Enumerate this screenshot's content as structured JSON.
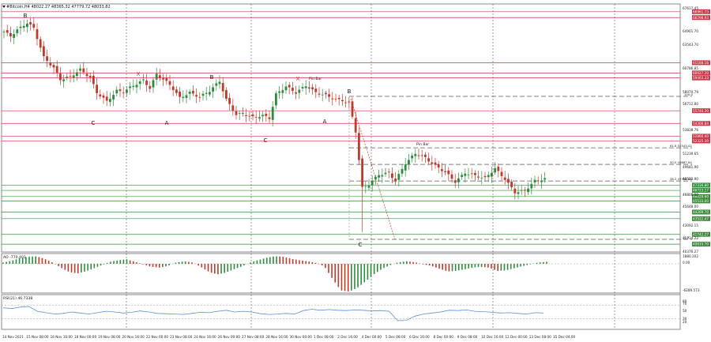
{
  "header": {
    "symbol_title": "#Bitcoin,H4  48022.27 48365.32 47779.72 48033.82"
  },
  "price_axis": {
    "ticks": [
      "67617.45",
      "64901.70",
      "63543.70",
      "60786.85",
      "58070.79",
      "56712.80",
      "53838.76",
      "51239.65",
      "49681.90",
      "48523.90",
      "46806.00",
      "45648.00",
      "43092.15",
      "41734.22",
      "40376.27"
    ]
  },
  "level_labels": [
    {
      "text": "66961.73",
      "color": "#c83747"
    },
    {
      "text": "66298.93",
      "color": "#c83747"
    },
    {
      "text": "61188.16",
      "color": "#c83747"
    },
    {
      "text": "60027.20",
      "color": "#c83747"
    },
    {
      "text": "59463.33",
      "color": "#c83747"
    },
    {
      "text": "55746.20",
      "color": "#c83747"
    },
    {
      "text": "54306.84",
      "color": "#c83747"
    },
    {
      "text": "52860.40",
      "color": "#c83747"
    },
    {
      "text": "52325.30",
      "color": "#c83747"
    },
    {
      "text": "47316.80",
      "color": "#3a8a3a"
    },
    {
      "text": "46723.17",
      "color": "#3a8a3a"
    },
    {
      "text": "46029.60",
      "color": "#3a8a3a"
    },
    {
      "text": "45533.00",
      "color": "#3a8a3a"
    },
    {
      "text": "44269.70",
      "color": "#3a8a3a"
    },
    {
      "text": "43522.47",
      "color": "#3a8a3a"
    },
    {
      "text": "41742.27",
      "color": "#3a8a3a"
    },
    {
      "text": "40633.70",
      "color": "#3a8a3a"
    }
  ],
  "fib": {
    "levels": [
      {
        "label": "100.0",
        "value": ""
      },
      {
        "label": "61.8",
        "value": "51545.02"
      },
      {
        "label": "50.0",
        "value": "49667.84"
      },
      {
        "label": "38.2",
        "value": "47790.66"
      },
      {
        "label": "0.0",
        "value": ""
      }
    ]
  },
  "wave_labels": [
    "B",
    "C",
    "X",
    "A",
    "B",
    "C",
    "X",
    "A",
    "B",
    "C",
    "C"
  ],
  "pin_bar_labels": [
    "Pin Bar",
    "Pin Bar"
  ],
  "ao": {
    "title": "AO -770.401",
    "ticks": [
      "1880.202",
      "0.00",
      "-6289.573"
    ]
  },
  "rsi": {
    "title": "RSI(21) 46.7338",
    "ticks": [
      "80",
      "70",
      "50",
      "30",
      "20"
    ]
  },
  "time_axis": {
    "labels": [
      "14 Nov 2021",
      "15 Nov 08:00",
      "16 Nov 16:00",
      "18 Nov 00:00",
      "19 Nov 08:00",
      "20 Nov 16:00",
      "22 Nov 00:00",
      "23 Nov 08:00",
      "24 Nov 16:00",
      "26 Nov 00:00",
      "27 Nov 08:00",
      "28 Nov 16:00",
      "30 Nov 00:00",
      "1 Dec 08:00",
      "2 Dec 16:00",
      "4 Dec 00:00",
      "5 Dec 08:00",
      "6 Dec 16:00",
      "8 Dec 00:00",
      "9 Dec 08:00",
      "10 Dec 16:00",
      "12 Dec 00:00",
      "13 Dec 08:00",
      "15 Dec 04:00"
    ]
  },
  "colors": {
    "bull": "#2e8b3e",
    "bear": "#c0392b",
    "resistance": "#c83747",
    "support": "#3a8a3a",
    "grid": "#555555",
    "frame": "#888888"
  },
  "chart_data": {
    "type": "candlestick",
    "title": "#Bitcoin,H4",
    "quote": {
      "open": 48022.27,
      "high": 48365.32,
      "low": 47779.72,
      "close": 48033.82
    },
    "x_range": [
      "14 Nov 2021",
      "15 Dec 04:00"
    ],
    "ylim": [
      40376.27,
      67617.45
    ],
    "path_points": [
      [
        0,
        64700
      ],
      [
        2,
        64200
      ],
      [
        4,
        64900
      ],
      [
        7,
        65700
      ],
      [
        9,
        65100
      ],
      [
        12,
        61800
      ],
      [
        15,
        60600
      ],
      [
        17,
        59300
      ],
      [
        20,
        59600
      ],
      [
        23,
        60400
      ],
      [
        26,
        59500
      ],
      [
        28,
        57800
      ],
      [
        31,
        56800
      ],
      [
        34,
        58000
      ],
      [
        36,
        57900
      ],
      [
        39,
        58600
      ],
      [
        42,
        59200
      ],
      [
        44,
        58300
      ],
      [
        46,
        59900
      ],
      [
        50,
        58700
      ],
      [
        53,
        57200
      ],
      [
        56,
        57800
      ],
      [
        59,
        57300
      ],
      [
        62,
        58000
      ],
      [
        65,
        59100
      ],
      [
        67,
        57000
      ],
      [
        70,
        55300
      ],
      [
        72,
        55400
      ],
      [
        75,
        55000
      ],
      [
        78,
        55200
      ],
      [
        80,
        54900
      ],
      [
        82,
        57600
      ],
      [
        85,
        58500
      ],
      [
        88,
        57800
      ],
      [
        91,
        58600
      ],
      [
        94,
        57800
      ],
      [
        97,
        57500
      ],
      [
        100,
        57000
      ],
      [
        102,
        56900
      ],
      [
        104,
        56600
      ],
      [
        106,
        53400
      ],
      [
        108,
        47000
      ],
      [
        110,
        47400
      ],
      [
        113,
        48500
      ],
      [
        116,
        48700
      ],
      [
        118,
        47800
      ],
      [
        121,
        49800
      ],
      [
        124,
        50900
      ],
      [
        127,
        50400
      ],
      [
        130,
        49500
      ],
      [
        133,
        48800
      ],
      [
        136,
        47700
      ],
      [
        139,
        48700
      ],
      [
        142,
        48400
      ],
      [
        145,
        48100
      ],
      [
        148,
        49200
      ],
      [
        151,
        48000
      ],
      [
        154,
        46500
      ],
      [
        157,
        46700
      ],
      [
        160,
        47800
      ],
      [
        163,
        48034
      ]
    ],
    "levels": {
      "resistance": [
        66961.73,
        66298.93,
        61188.16,
        60027.2,
        59463.33,
        55746.2,
        54306.84,
        52860.4,
        52325.3
      ],
      "support": [
        47316.8,
        46723.17,
        46029.6,
        45533.0,
        44269.7,
        43522.47,
        41742.27,
        40633.7
      ],
      "fib_38_2": 47790.66,
      "fib_50_0": 49667.84,
      "fib_61_8": 51545.02
    },
    "ao": {
      "values": [
        0.05,
        0.12,
        0.22,
        0.28,
        0.3,
        0.2,
        0.05,
        -0.15,
        -0.32,
        -0.38,
        -0.3,
        -0.18,
        -0.05,
        0.08,
        0.14,
        0.18,
        0.08,
        -0.02,
        -0.12,
        -0.15,
        -0.08,
        0.05,
        0.1,
        0.05,
        -0.12,
        -0.32,
        -0.42,
        -0.35,
        -0.22,
        -0.1,
        0.05,
        0.15,
        0.24,
        0.3,
        0.28,
        0.2,
        0.14,
        0.1,
        0.03,
        -0.1,
        -0.6,
        -1.05,
        -1.1,
        -0.95,
        -0.7,
        -0.42,
        -0.2,
        -0.05,
        0.06,
        0.1,
        0.06,
        -0.02,
        -0.08,
        -0.2,
        -0.3,
        -0.28,
        -0.22,
        -0.15,
        -0.12,
        -0.15,
        -0.28,
        -0.26,
        -0.18,
        -0.1,
        -0.02,
        0.05,
        0.08
      ]
    },
    "rsi": {
      "values": [
        62,
        60,
        64,
        66,
        52,
        48,
        44,
        46,
        50,
        47,
        44,
        48,
        52,
        50,
        47,
        49,
        53,
        50,
        46,
        45,
        44,
        43,
        46,
        49,
        48,
        52,
        55,
        50,
        52,
        50,
        45,
        43,
        44,
        46,
        44,
        54,
        58,
        55,
        57,
        55,
        54,
        56,
        55,
        53,
        54,
        52,
        25,
        26,
        38,
        44,
        47,
        50,
        55,
        54,
        56,
        52,
        51,
        49,
        47,
        48,
        46,
        44,
        48,
        47
      ]
    },
    "ylabel": "",
    "xlabel": ""
  }
}
